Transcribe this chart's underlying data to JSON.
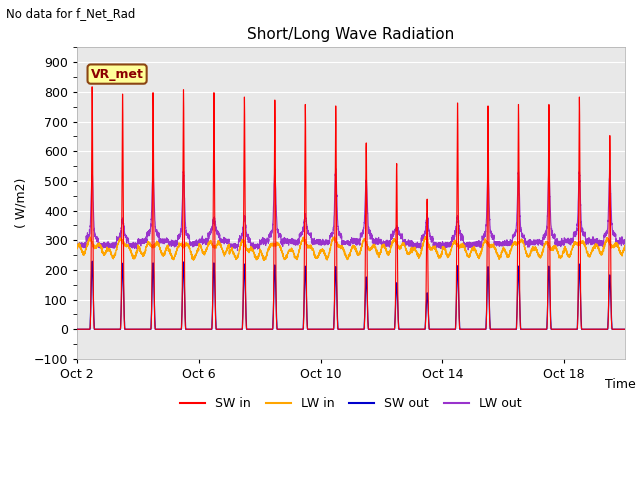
{
  "title": "Short/Long Wave Radiation",
  "subtitle": "No data for f_Net_Rad",
  "ylabel": "( W/m2)",
  "xlabel": "Time",
  "station_label": "VR_met",
  "ylim": [
    -100,
    950
  ],
  "yticks": [
    -100,
    0,
    100,
    200,
    300,
    400,
    500,
    600,
    700,
    800,
    900
  ],
  "xtick_labels": [
    "Oct 2",
    "Oct 6",
    "Oct 10",
    "Oct 14",
    "Oct 18"
  ],
  "xtick_positions": [
    0,
    4,
    8,
    12,
    16
  ],
  "legend_entries": [
    "SW in",
    "LW in",
    "SW out",
    "LW out"
  ],
  "colors": {
    "SW_in": "#ff0000",
    "LW_in": "#ffa500",
    "SW_out": "#0000cc",
    "LW_out": "#9933cc"
  },
  "fig_bg": "#ffffff",
  "plot_bg": "#e8e8e8",
  "n_days": 18,
  "n_per_day": 288,
  "peak_SW_in": [
    820,
    795,
    800,
    810,
    800,
    785,
    775,
    760,
    755,
    630,
    560,
    440,
    765,
    755,
    760,
    760,
    785,
    655
  ],
  "peak_LW_out": [
    490,
    340,
    500,
    505,
    345,
    345,
    505,
    350,
    510,
    475,
    300,
    350,
    350,
    490,
    500,
    500,
    500,
    500
  ]
}
